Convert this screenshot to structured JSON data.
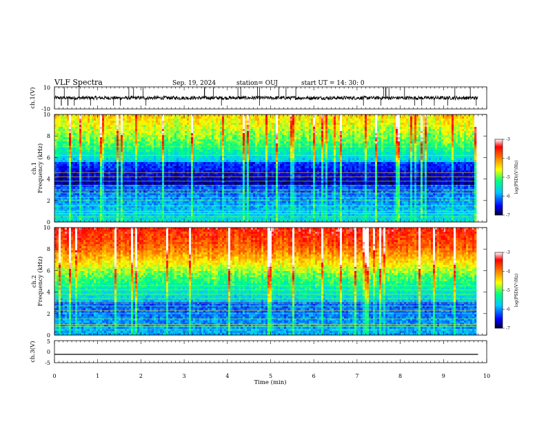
{
  "header": {
    "title": "VLF Spectra",
    "date": "Sep. 19, 2024",
    "station": "station= OUJ",
    "start": "start  UT  =   14: 30: 0"
  },
  "chart_data": [
    {
      "type": "line",
      "panel": "ch1-waveform",
      "ylabel": "ch.1(V)",
      "ylim": [
        -10,
        10
      ],
      "yticks": [
        "10",
        "-10"
      ],
      "xlim": [
        0,
        10
      ],
      "baseline": 0,
      "line_color": "#000000"
    },
    {
      "type": "heatmap",
      "panel": "ch1-spectrogram",
      "ylabel": "ch.1\nFrequency  (kHz)",
      "ylim": [
        0,
        10
      ],
      "yticks": [
        "0",
        "2",
        "4",
        "6",
        "8",
        "10"
      ],
      "x_extent_min": [
        0,
        9.8
      ],
      "colorbar": {
        "label": "log(PSD)(V²/Hz)",
        "range": [
          -7,
          -3
        ],
        "ticks": [
          "-3",
          "-4",
          "-5",
          "-6",
          "-7"
        ],
        "colormap": [
          "#000030",
          "#0000ff",
          "#00c8ff",
          "#00ff80",
          "#ffff00",
          "#ff8000",
          "#ff0000",
          "#ffffff"
        ]
      }
    },
    {
      "type": "heatmap",
      "panel": "ch2-spectrogram",
      "ylabel": "ch.2\nFrequency  (kHz)",
      "ylim": [
        0,
        10
      ],
      "yticks": [
        "0",
        "2",
        "4",
        "6",
        "8",
        "10"
      ],
      "x_extent_min": [
        0,
        9.8
      ],
      "colorbar": {
        "label": "log(PSD)(V²/Hz)",
        "range": [
          -7,
          -3
        ],
        "ticks": [
          "-3",
          "-4",
          "-5",
          "-6",
          "-7"
        ],
        "colormap": [
          "#000030",
          "#0000ff",
          "#00c8ff",
          "#00ff80",
          "#ffff00",
          "#ff8000",
          "#ff0000",
          "#ffffff"
        ]
      }
    },
    {
      "type": "line",
      "panel": "ch3-waveform",
      "ylabel": "ch.3(V)",
      "ylim": [
        -5,
        5
      ],
      "yticks": [
        "5",
        "0",
        "-5"
      ],
      "constant_value": -1.2,
      "xlim": [
        0,
        10
      ],
      "line_color": "#000000"
    }
  ],
  "x_axis": {
    "label": "Time  (min)",
    "range": [
      0,
      10
    ],
    "ticks": [
      "0",
      "1",
      "2",
      "3",
      "4",
      "5",
      "6",
      "7",
      "8",
      "9",
      "10"
    ]
  }
}
